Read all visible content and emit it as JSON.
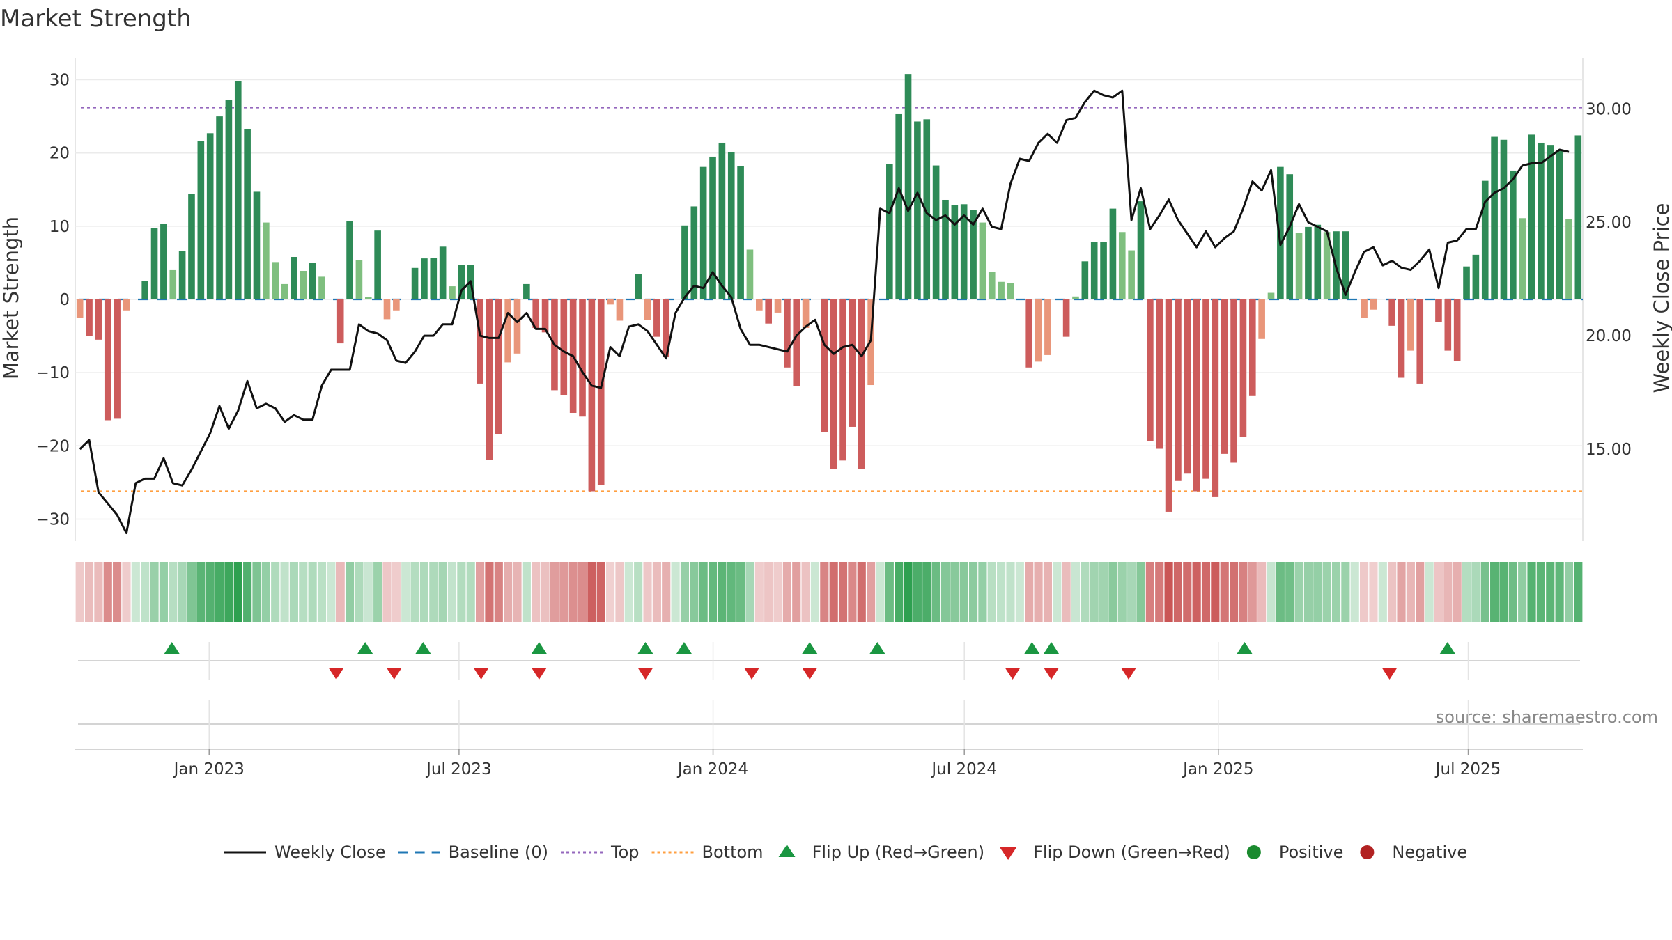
{
  "chart_data": {
    "type": "bar",
    "title": "Market Strength",
    "ylabel": "Market Strength",
    "y2label": "Weekly Close Price",
    "source": "source: sharemaestro.com",
    "ylim": [
      -33,
      33
    ],
    "y2lim": [
      10.95,
      32.25
    ],
    "yticks": [
      30,
      20,
      10,
      0,
      -10,
      -20,
      -30
    ],
    "ytick_labels": [
      "30",
      "20",
      "10",
      "0",
      "−10",
      "−20",
      "−30"
    ],
    "y2ticks": [
      30,
      25,
      20,
      15
    ],
    "y2tick_labels": [
      "30.00",
      "25.00",
      "20.00",
      "15.00"
    ],
    "x_start": "2022-09-26",
    "x_end": "2025-09-22",
    "xticks": [
      {
        "label": "Jan 2023",
        "date": "2023-01-01"
      },
      {
        "label": "Jul 2023",
        "date": "2023-07-01"
      },
      {
        "label": "Jan 2024",
        "date": "2024-01-01"
      },
      {
        "label": "Jul 2024",
        "date": "2024-07-01"
      },
      {
        "label": "Jan 2025",
        "date": "2025-01-01"
      },
      {
        "label": "Jul 2025",
        "date": "2025-07-01"
      }
    ],
    "top_level": 26.2,
    "bottom_level": -26.2,
    "baseline": 0,
    "strength": [
      -2.5,
      -5,
      -5.5,
      -16.5,
      -16.3,
      -1.5,
      0,
      2.5,
      9.7,
      10.3,
      4,
      6.6,
      14.4,
      21.6,
      22.7,
      25,
      27.2,
      29.8,
      23.3,
      14.7,
      10.5,
      5.1,
      2.1,
      5.8,
      3.9,
      5,
      3.1,
      0,
      -6,
      10.7,
      5.4,
      0.3,
      9.4,
      -2.7,
      -1.5,
      0,
      4.3,
      5.6,
      5.7,
      7.2,
      1.8,
      4.7,
      4.7,
      -11.5,
      -21.9,
      -18.4,
      -8.6,
      -7.4,
      2.1,
      -3.9,
      -4.5,
      -12.4,
      -13.1,
      -15.5,
      -16,
      -26.2,
      -25.3,
      -0.7,
      -2.9,
      0,
      3.5,
      -2.8,
      -5.1,
      -7.9,
      0,
      10.1,
      12.7,
      18.1,
      19.5,
      21.4,
      20.1,
      18.2,
      6.8,
      -1.5,
      -3.3,
      -1.8,
      -9.3,
      -11.8,
      -3.9,
      0,
      -18.1,
      -23.2,
      -22,
      -17.4,
      -23.2,
      -11.7,
      0,
      18.5,
      25.3,
      30.8,
      24.3,
      24.6,
      18.3,
      13.6,
      12.9,
      13,
      12.2,
      10.5,
      3.8,
      2.4,
      2.2,
      0,
      -9.3,
      -8.5,
      -7.6,
      0,
      -5.1,
      0.4,
      5.2,
      7.8,
      7.8,
      12.4,
      9.2,
      6.7,
      13.4,
      -19.4,
      -20.4,
      -29,
      -24.8,
      -23.8,
      -26.2,
      -24.5,
      -27,
      -21.1,
      -22.3,
      -18.8,
      -13.2,
      -5.4,
      0.9,
      18.1,
      17.1,
      9.1,
      9.9,
      10.2,
      9.2,
      9.3,
      9.3,
      0,
      -2.5,
      -1.4,
      0,
      -3.6,
      -10.7,
      -7,
      -11.5,
      0,
      -3.1,
      -7,
      -8.4,
      4.5,
      6.1,
      16.2,
      22.2,
      21.8,
      17.6,
      11.1,
      22.5,
      21.4,
      21.1,
      20.3,
      11,
      22.4
    ],
    "weekly_close": [
      15.0,
      15.4,
      13.1,
      12.6,
      12.1,
      11.3,
      13.5,
      13.7,
      13.7,
      14.6,
      13.5,
      13.4,
      14.1,
      14.9,
      15.7,
      16.9,
      15.9,
      16.7,
      18.0,
      16.8,
      17.0,
      16.8,
      16.2,
      16.5,
      16.3,
      16.3,
      17.8,
      18.5,
      18.5,
      18.5,
      20.5,
      20.2,
      20.1,
      19.8,
      18.9,
      18.8,
      19.3,
      20.0,
      20.0,
      20.5,
      20.5,
      22.0,
      22.4,
      20.0,
      19.9,
      19.9,
      21.0,
      20.6,
      21.0,
      20.3,
      20.3,
      19.6,
      19.3,
      19.1,
      18.4,
      17.8,
      17.7,
      19.5,
      19.1,
      20.4,
      20.5,
      20.2,
      19.6,
      19.0,
      21.0,
      21.7,
      22.2,
      22.1,
      22.8,
      22.2,
      21.7,
      20.3,
      19.6,
      19.6,
      19.5,
      19.4,
      19.3,
      20.0,
      20.4,
      20.7,
      19.6,
      19.2,
      19.5,
      19.6,
      19.1,
      19.8,
      25.6,
      25.4,
      26.5,
      25.5,
      26.3,
      25.4,
      25.1,
      25.3,
      24.9,
      25.3,
      24.9,
      25.6,
      24.8,
      24.7,
      26.7,
      27.8,
      27.7,
      28.5,
      28.9,
      28.5,
      29.5,
      29.6,
      30.3,
      30.8,
      30.6,
      30.5,
      30.8,
      25.1,
      26.5,
      24.7,
      25.3,
      26.0,
      25.1,
      24.5,
      23.9,
      24.6,
      23.9,
      24.3,
      24.6,
      25.6,
      26.8,
      26.4,
      27.3,
      24.0,
      24.8,
      25.8,
      25.0,
      24.8,
      24.6,
      23.0,
      21.8,
      22.8,
      23.7,
      23.9,
      23.1,
      23.3,
      23.0,
      22.9,
      23.3,
      23.8,
      22.1,
      24.1,
      24.2,
      24.7,
      24.7,
      25.9,
      26.3,
      26.5,
      26.9,
      27.5,
      27.6,
      27.6,
      27.9,
      28.2,
      28.1
    ],
    "flip_up_dates": [
      "2022-12-05",
      "2023-04-24",
      "2023-06-05",
      "2023-08-28",
      "2023-11-13",
      "2023-12-11",
      "2024-03-11",
      "2024-04-29",
      "2024-08-19",
      "2024-09-02",
      "2025-01-20",
      "2025-06-16"
    ],
    "flip_down_dates": [
      "2023-04-03",
      "2023-05-15",
      "2023-07-17",
      "2023-08-28",
      "2023-11-13",
      "2024-01-29",
      "2024-03-11",
      "2024-08-05",
      "2024-09-02",
      "2024-10-28",
      "2025-05-05"
    ],
    "colors": {
      "strong_green": "#2e8b57",
      "light_green": "#7fbf7f",
      "strong_red": "#cd5c5c",
      "light_red": "#e9967a",
      "line": "#111111",
      "baseline": "#1f77b4",
      "top": "#9467bd",
      "bottom": "#ff9f40",
      "flip_up": "#1a9641",
      "flip_down": "#d62728",
      "positive": "#1a8a2e",
      "negative": "#b22222"
    },
    "legend": [
      {
        "label": "Weekly Close",
        "kind": "line",
        "color": "#111111"
      },
      {
        "label": "Baseline (0)",
        "kind": "dash",
        "color": "#1f77b4"
      },
      {
        "label": "Top",
        "kind": "dot",
        "color": "#9467bd"
      },
      {
        "label": "Bottom",
        "kind": "dot",
        "color": "#ff9f40"
      },
      {
        "label": "Flip Up (Red→Green)",
        "kind": "tri-up",
        "color": "#1a9641"
      },
      {
        "label": "Flip Down (Green→Red)",
        "kind": "tri-down",
        "color": "#d62728"
      },
      {
        "label": "Positive",
        "kind": "circle",
        "color": "#1a8a2e"
      },
      {
        "label": "Negative",
        "kind": "circle",
        "color": "#b22222"
      }
    ]
  }
}
